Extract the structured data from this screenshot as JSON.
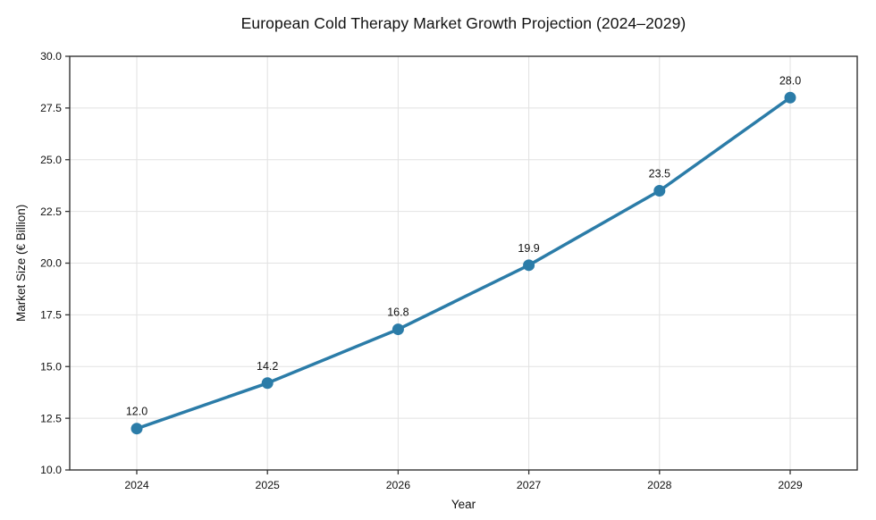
{
  "chart_data": {
    "type": "line",
    "title": "European Cold Therapy Market Growth Projection (2024–2029)",
    "xlabel": "Year",
    "ylabel": "Market Size (€ Billion)",
    "categories": [
      "2024",
      "2025",
      "2026",
      "2027",
      "2028",
      "2029"
    ],
    "values": [
      12.0,
      14.2,
      16.8,
      19.9,
      23.5,
      28.0
    ],
    "point_labels": [
      "12.0",
      "14.2",
      "16.8",
      "19.9",
      "23.5",
      "28.0"
    ],
    "ylim": [
      10.0,
      30.0
    ],
    "ytick_step": 2.5,
    "ytick_labels": [
      "10.0",
      "12.5",
      "15.0",
      "17.5",
      "20.0",
      "22.5",
      "25.0",
      "27.5",
      "30.0"
    ],
    "grid": true,
    "legend_position": "none",
    "line_color": "#2b7ca8",
    "marker_color": "#2b7ca8",
    "grid_color": "#e2e2e2",
    "spine_color": "#333333",
    "text_color": "#111111",
    "background_color": "#ffffff"
  }
}
